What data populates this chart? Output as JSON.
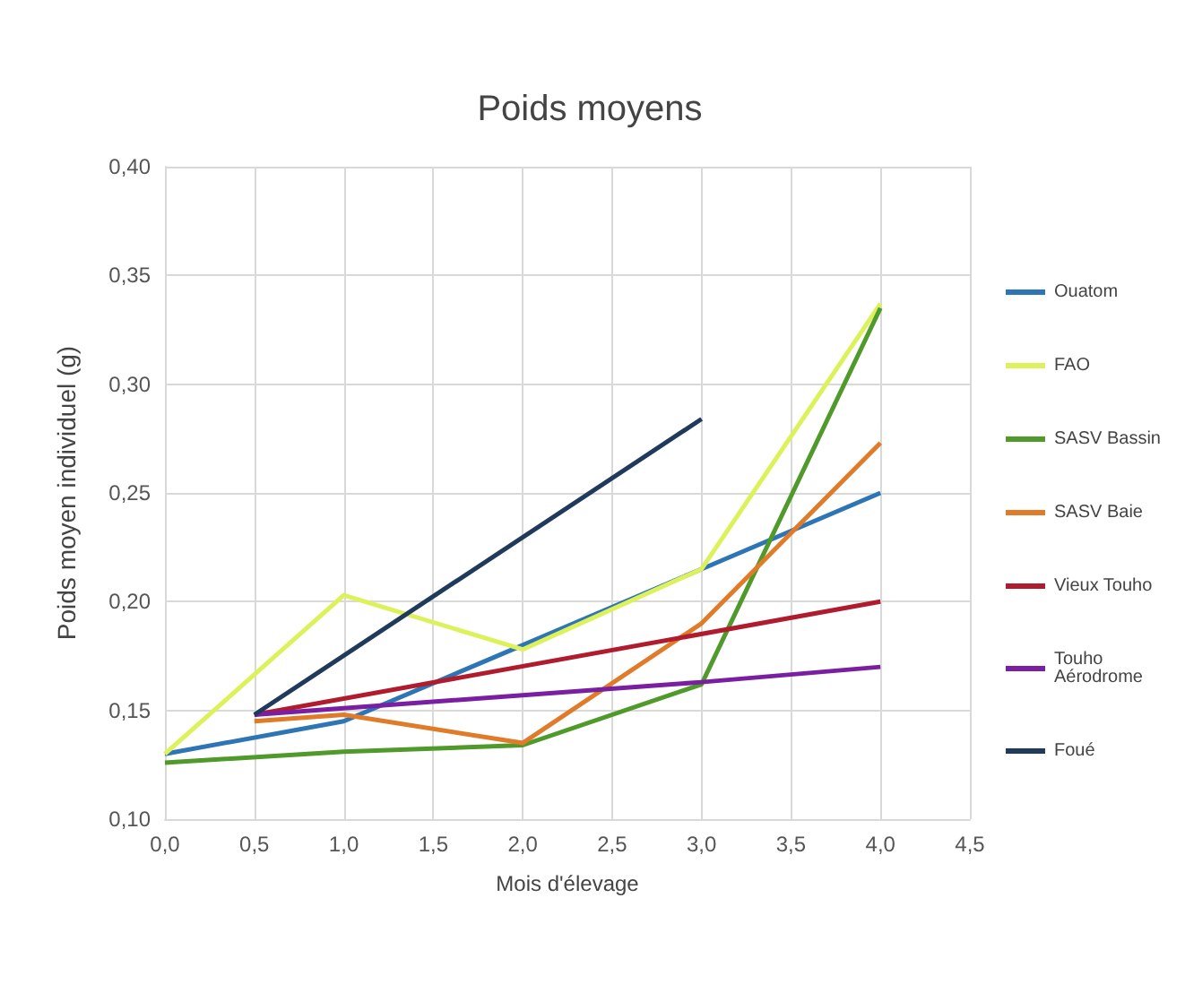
{
  "chart_data": {
    "type": "line",
    "title": "Poids moyens",
    "xlabel": "Mois d'élevage",
    "ylabel": "Poids moyen individuel (g)",
    "xlim": [
      0,
      4.5
    ],
    "xticks": [
      {
        "value": 0,
        "label": "0,0"
      },
      {
        "value": 0.5,
        "label": "0,5"
      },
      {
        "value": 1,
        "label": "1,0"
      },
      {
        "value": 1.5,
        "label": "1,5"
      },
      {
        "value": 2,
        "label": "2,0"
      },
      {
        "value": 2.5,
        "label": "2,5"
      },
      {
        "value": 3,
        "label": "3,0"
      },
      {
        "value": 3.5,
        "label": "3,5"
      },
      {
        "value": 4,
        "label": "4,0"
      },
      {
        "value": 4.5,
        "label": "4,5"
      }
    ],
    "ylim": [
      0.1,
      0.4
    ],
    "yticks": [
      {
        "value": 0.1,
        "label": "0,10"
      },
      {
        "value": 0.15,
        "label": "0,15"
      },
      {
        "value": 0.2,
        "label": "0,20"
      },
      {
        "value": 0.25,
        "label": "0,25"
      },
      {
        "value": 0.3,
        "label": "0,30"
      },
      {
        "value": 0.35,
        "label": "0,35"
      },
      {
        "value": 0.4,
        "label": "0,40"
      }
    ],
    "grid": true,
    "legend": "right",
    "marker": "none",
    "line_style": "solid",
    "series": [
      {
        "name": "Ouatom",
        "color": "#2e75b6",
        "x": [
          0,
          1,
          2,
          3,
          4
        ],
        "values": [
          0.13,
          0.145,
          0.18,
          0.215,
          0.25
        ]
      },
      {
        "name": "FAO",
        "color": "#ddf25a",
        "x": [
          0,
          1,
          2,
          3,
          4
        ],
        "values": [
          0.13,
          0.203,
          0.178,
          0.215,
          0.337
        ]
      },
      {
        "name": "SASV Bassin",
        "color": "#4f9a2a",
        "x": [
          0,
          1,
          2,
          3,
          4
        ],
        "values": [
          0.126,
          0.131,
          0.134,
          0.162,
          0.335
        ]
      },
      {
        "name": "SASV Baie",
        "color": "#e07b29",
        "x": [
          0.5,
          1,
          2,
          3,
          4
        ],
        "values": [
          0.145,
          0.148,
          0.135,
          0.19,
          0.273
        ]
      },
      {
        "name": "Vieux Touho",
        "color": "#b01c2e",
        "x": [
          0.5,
          4
        ],
        "values": [
          0.148,
          0.2
        ]
      },
      {
        "name": "Touho Aérodrome",
        "color": "#7a1fa2",
        "x": [
          0.5,
          3,
          4
        ],
        "values": [
          0.148,
          0.163,
          0.17
        ]
      },
      {
        "name": "Foué",
        "color": "#1f3a5a",
        "x": [
          0.5,
          3
        ],
        "values": [
          0.148,
          0.284
        ]
      }
    ]
  }
}
